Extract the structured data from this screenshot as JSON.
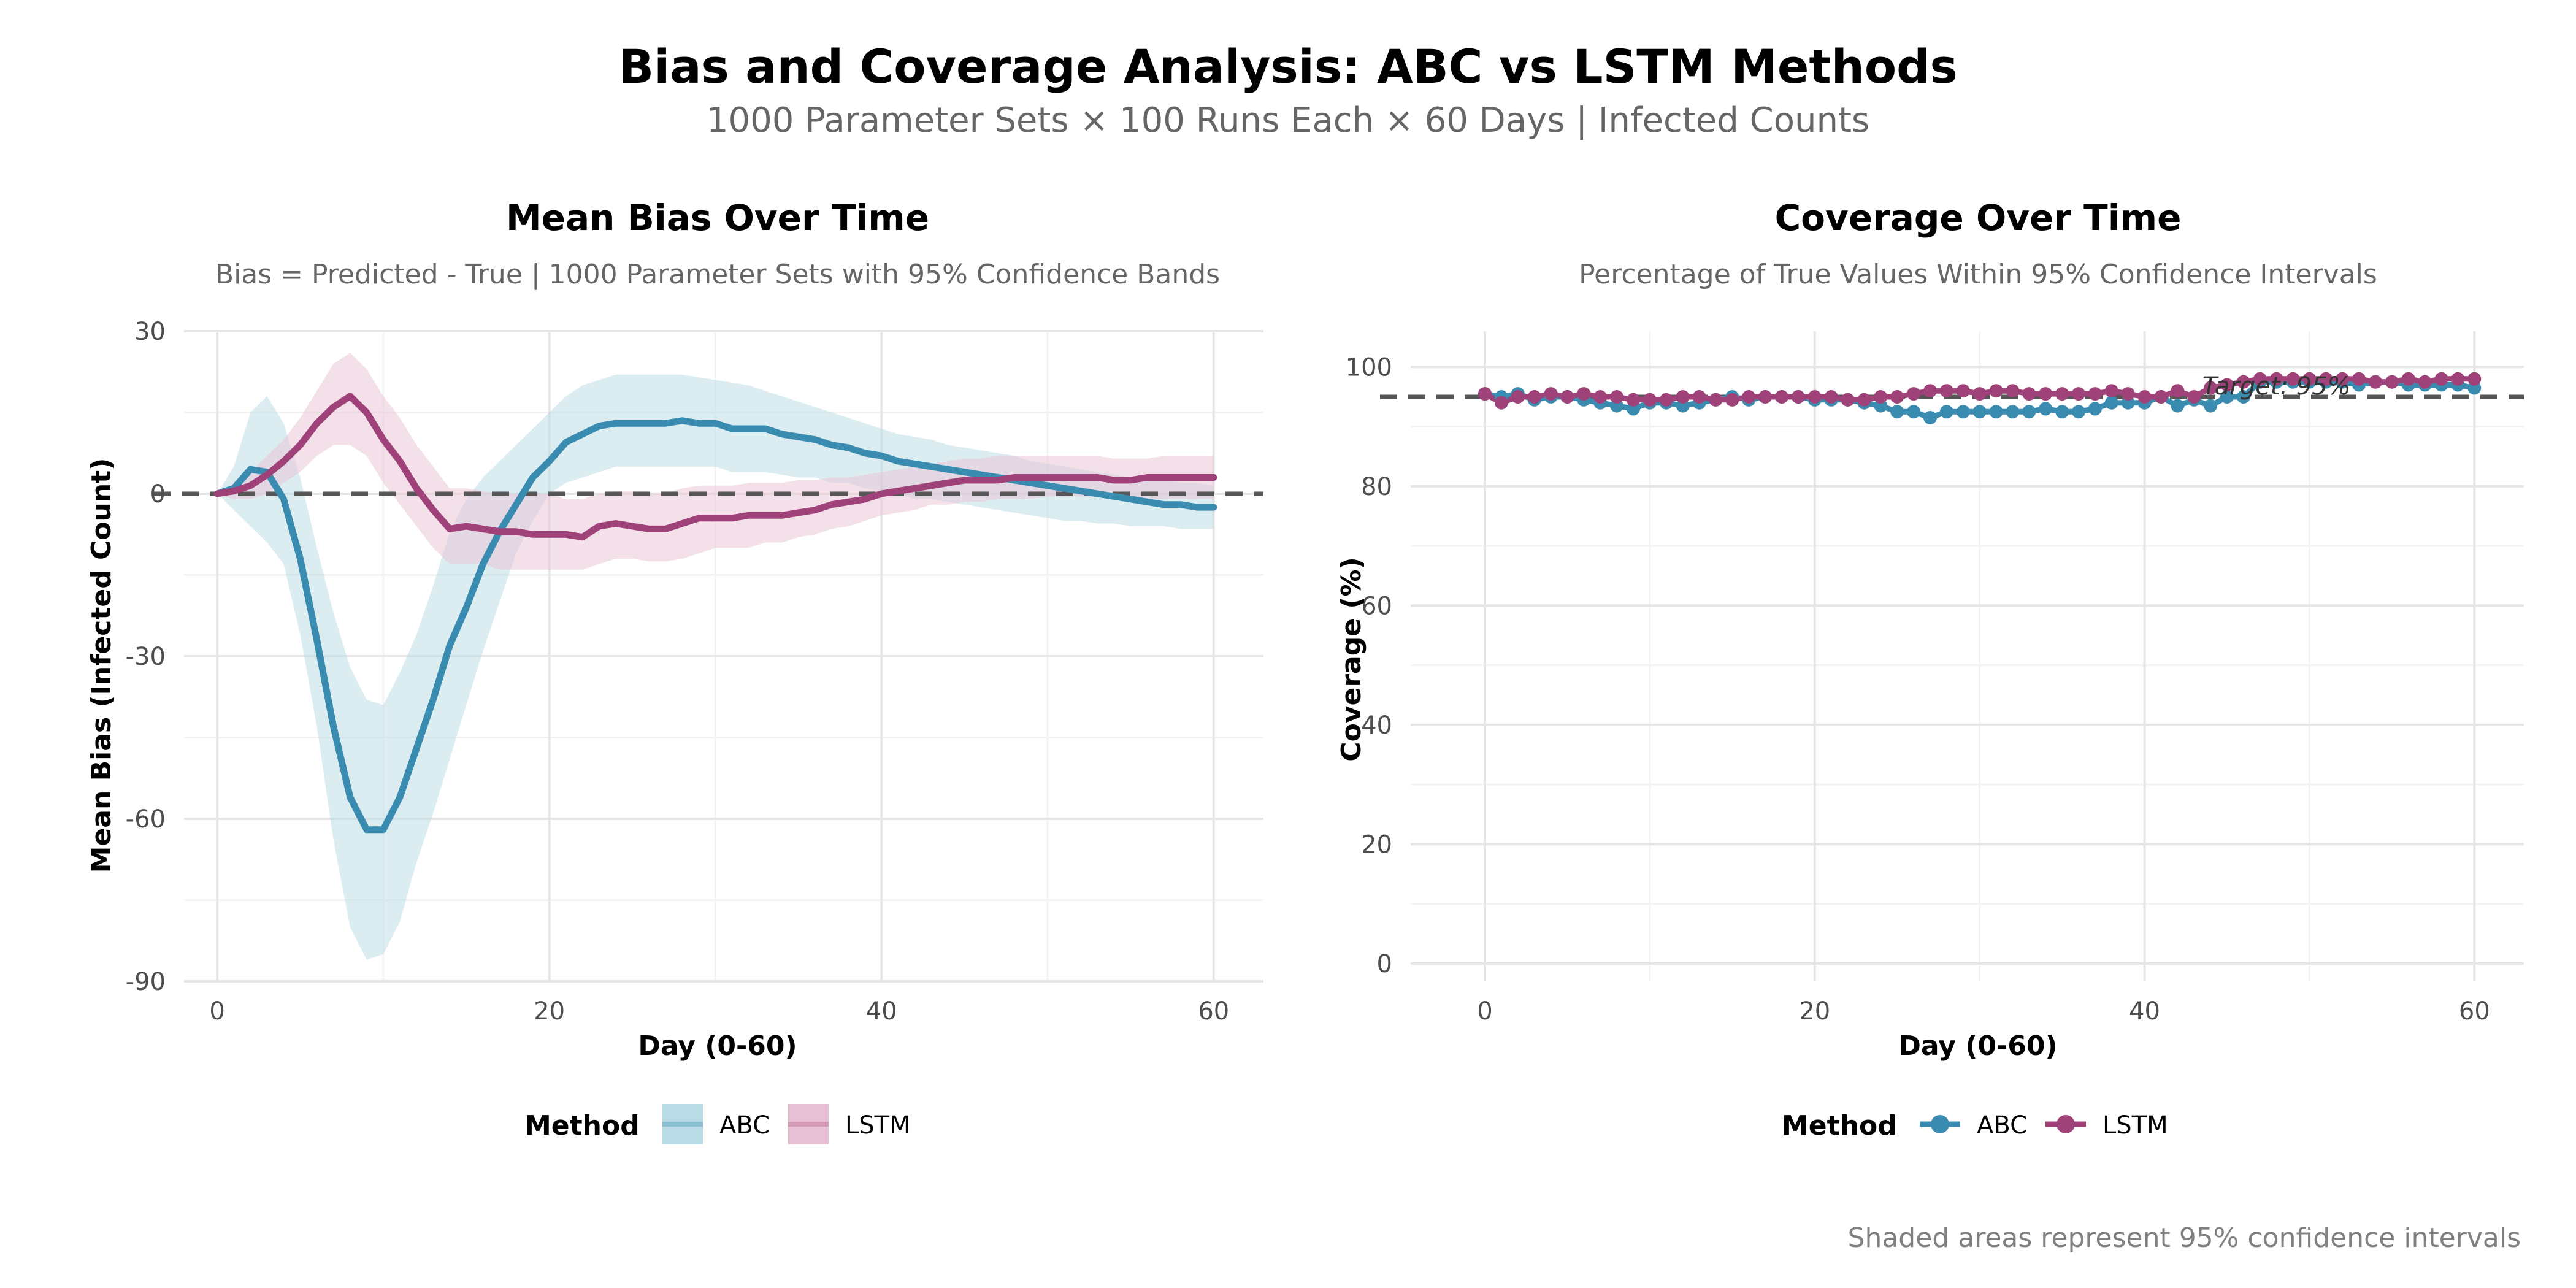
{
  "figure": {
    "title": "Bias and Coverage Analysis: ABC vs LSTM Methods",
    "subtitle": "1000 Parameter Sets × 100 Runs Each × 60 Days | Infected Counts",
    "caption": "Shaded areas represent 95% confidence intervals"
  },
  "colors": {
    "ABC": "#3a8bb0",
    "LSTM": "#a0427a",
    "ABC_band": "#b9dbe6",
    "LSTM_band": "#e8c2d4",
    "reference_line": "#555555"
  },
  "chart_data": [
    {
      "type": "line",
      "title": "Mean Bias Over Time",
      "subtitle": "Bias = Predicted - True | 1000 Parameter Sets with 95% Confidence Bands",
      "xlabel": "Day (0-60)",
      "ylabel": "Mean Bias (Infected Count)",
      "xlim": [
        -2,
        63
      ],
      "ylim": [
        -90,
        30
      ],
      "xticks": [
        0,
        20,
        40,
        60
      ],
      "yticks": [
        -90,
        -60,
        -30,
        0,
        30
      ],
      "grid": true,
      "reference_line": 0,
      "legend": {
        "title": "Method",
        "position": "bottom",
        "entries": [
          "ABC",
          "LSTM"
        ],
        "style": "band"
      },
      "x": [
        0,
        1,
        2,
        3,
        4,
        5,
        6,
        7,
        8,
        9,
        10,
        11,
        12,
        13,
        14,
        15,
        16,
        17,
        18,
        19,
        20,
        21,
        22,
        23,
        24,
        25,
        26,
        27,
        28,
        29,
        30,
        31,
        32,
        33,
        34,
        35,
        36,
        37,
        38,
        39,
        40,
        41,
        42,
        43,
        44,
        45,
        46,
        47,
        48,
        49,
        50,
        51,
        52,
        53,
        54,
        55,
        56,
        57,
        58,
        59,
        60
      ],
      "series": [
        {
          "name": "ABC",
          "values": [
            0,
            1,
            4.5,
            4,
            -1,
            -12,
            -27,
            -43,
            -56,
            -62,
            -62,
            -56,
            -47,
            -38,
            -28,
            -21,
            -13,
            -7,
            -2,
            3,
            6,
            9.5,
            11,
            12.5,
            13,
            13,
            13,
            13,
            13.5,
            13,
            13,
            12,
            12,
            12,
            11,
            10.5,
            10,
            9,
            8.5,
            7.5,
            7,
            6,
            5.5,
            5,
            4.5,
            4,
            3.5,
            3,
            2.5,
            2,
            1.5,
            1,
            0.5,
            0,
            -0.5,
            -1,
            -1.5,
            -2,
            -2,
            -2.5,
            -2.5
          ],
          "lower": [
            0,
            -3,
            -6,
            -9,
            -13,
            -26,
            -43,
            -64,
            -80,
            -86,
            -85,
            -79,
            -68,
            -59,
            -49,
            -39,
            -29,
            -20,
            -11,
            -5,
            0,
            2,
            3,
            4,
            5,
            5,
            5,
            5,
            5,
            5,
            5,
            4,
            4,
            4,
            3.5,
            3,
            3,
            2,
            2,
            1,
            0.5,
            0,
            -1,
            -1,
            -1.5,
            -2,
            -2.5,
            -3,
            -3.5,
            -4,
            -4.5,
            -5,
            -5,
            -5.5,
            -5.5,
            -6,
            -6,
            -6,
            -6.5,
            -6.5,
            -6.5
          ],
          "upper": [
            0,
            5,
            15,
            18,
            13,
            3,
            -10,
            -22,
            -32,
            -38,
            -39,
            -33,
            -26,
            -17,
            -7,
            -1,
            3,
            6,
            9,
            12,
            15,
            18,
            20,
            21,
            22,
            22,
            22,
            22,
            22,
            21.5,
            21,
            20.5,
            20,
            19,
            18,
            17,
            16,
            15,
            14,
            13,
            12,
            11,
            10.5,
            10,
            9,
            8.5,
            8,
            7.5,
            7,
            6,
            5.5,
            5,
            4.5,
            4,
            3.5,
            3,
            2.5,
            2.5,
            2,
            2,
            1.5
          ]
        },
        {
          "name": "LSTM",
          "values": [
            0,
            0.5,
            1.5,
            3.5,
            6,
            9,
            13,
            16,
            18,
            15,
            10,
            6,
            1,
            -3,
            -6.5,
            -6,
            -6.5,
            -7,
            -7,
            -7.5,
            -7.5,
            -7.5,
            -8,
            -6,
            -5.5,
            -6,
            -6.5,
            -6.5,
            -5.5,
            -4.5,
            -4.5,
            -4.5,
            -4,
            -4,
            -4,
            -3.5,
            -3,
            -2,
            -1.5,
            -1,
            0,
            0.5,
            1,
            1.5,
            2,
            2.5,
            2.5,
            2.5,
            3,
            3,
            3,
            3,
            3,
            3,
            2.5,
            2.5,
            3,
            3,
            3,
            3,
            3
          ],
          "lower": [
            0,
            -1,
            -1,
            0,
            2,
            4,
            7,
            9,
            9,
            7,
            2,
            -2,
            -6,
            -10,
            -13,
            -13,
            -13,
            -14,
            -14,
            -14,
            -14,
            -14,
            -14,
            -13,
            -12,
            -12,
            -12.5,
            -12.5,
            -12,
            -11,
            -10,
            -10,
            -10,
            -9,
            -9,
            -8,
            -7.5,
            -6.5,
            -6,
            -5,
            -4,
            -3.5,
            -3,
            -2,
            -2,
            -1.5,
            -1.5,
            -1,
            -1,
            -1,
            -0.5,
            -0.5,
            -0.5,
            -0.5,
            -1,
            -1,
            -1,
            -1,
            -1,
            -1,
            -1
          ],
          "upper": [
            0,
            2,
            4,
            7,
            10,
            14,
            19,
            24,
            26,
            23,
            18,
            14,
            9,
            5,
            1,
            1,
            0.5,
            0,
            0,
            0,
            0,
            -1,
            -1,
            0,
            0.5,
            0.5,
            0,
            0,
            1,
            1.5,
            1.5,
            1.5,
            2,
            2,
            2,
            2.5,
            2.5,
            3,
            3,
            3.5,
            4,
            4.5,
            5,
            5.5,
            6,
            6.5,
            6.5,
            7,
            7,
            7,
            7,
            7,
            7,
            7,
            6.5,
            6.5,
            6.5,
            7,
            7,
            7,
            7
          ]
        }
      ]
    },
    {
      "type": "line",
      "title": "Coverage Over Time",
      "subtitle": "Percentage of True Values Within 95% Confidence Intervals",
      "xlabel": "Day (0-60)",
      "ylabel": "Coverage (%)",
      "xlim": [
        -4.5,
        63
      ],
      "ylim": [
        -3,
        106
      ],
      "xticks": [
        0,
        20,
        40,
        60
      ],
      "yticks": [
        0,
        20,
        40,
        60,
        80,
        100
      ],
      "grid": true,
      "reference_line": 95,
      "reference_label": "Target: 95%",
      "legend": {
        "title": "Method",
        "position": "bottom",
        "entries": [
          "ABC",
          "LSTM"
        ],
        "style": "line-point"
      },
      "x": [
        0,
        1,
        2,
        3,
        4,
        5,
        6,
        7,
        8,
        9,
        10,
        11,
        12,
        13,
        14,
        15,
        16,
        17,
        18,
        19,
        20,
        21,
        22,
        23,
        24,
        25,
        26,
        27,
        28,
        29,
        30,
        31,
        32,
        33,
        34,
        35,
        36,
        37,
        38,
        39,
        40,
        41,
        42,
        43,
        44,
        45,
        46,
        47,
        48,
        49,
        50,
        51,
        52,
        53,
        54,
        55,
        56,
        57,
        58,
        59,
        60
      ],
      "series": [
        {
          "name": "ABC",
          "values": [
            95.5,
            95,
            95.5,
            94.5,
            95,
            95,
            94.5,
            94,
            93.5,
            93,
            94,
            94,
            93.5,
            94,
            94.5,
            95,
            94.5,
            95,
            95,
            95,
            94.5,
            94.5,
            94.5,
            94,
            93.5,
            92.5,
            92.5,
            91.5,
            92.5,
            92.5,
            92.5,
            92.5,
            92.5,
            92.5,
            93,
            92.5,
            92.5,
            93,
            94,
            94,
            94,
            95,
            93.5,
            94.5,
            93.5,
            95,
            95,
            97.5,
            97.5,
            97.5,
            97.5,
            97.5,
            97.5,
            97,
            97.5,
            97.5,
            97,
            97,
            97,
            97,
            96.5
          ],
          "marker": "circle"
        },
        {
          "name": "LSTM",
          "values": [
            95.5,
            94,
            95,
            95,
            95.5,
            95,
            95.5,
            95,
            95,
            94.5,
            94.5,
            94.5,
            95,
            95,
            94.5,
            94.5,
            95,
            95,
            95,
            95,
            95,
            95,
            94.5,
            94.5,
            95,
            95,
            95.5,
            96,
            96,
            96,
            95.5,
            96,
            96,
            95.5,
            95.5,
            95.5,
            95.5,
            95.5,
            96,
            95.5,
            95,
            95,
            96,
            95,
            96.5,
            97,
            97.5,
            98,
            98,
            98,
            98,
            98,
            98,
            98,
            97.5,
            97.5,
            98,
            97.5,
            98,
            98,
            98
          ],
          "marker": "circle"
        }
      ]
    }
  ]
}
